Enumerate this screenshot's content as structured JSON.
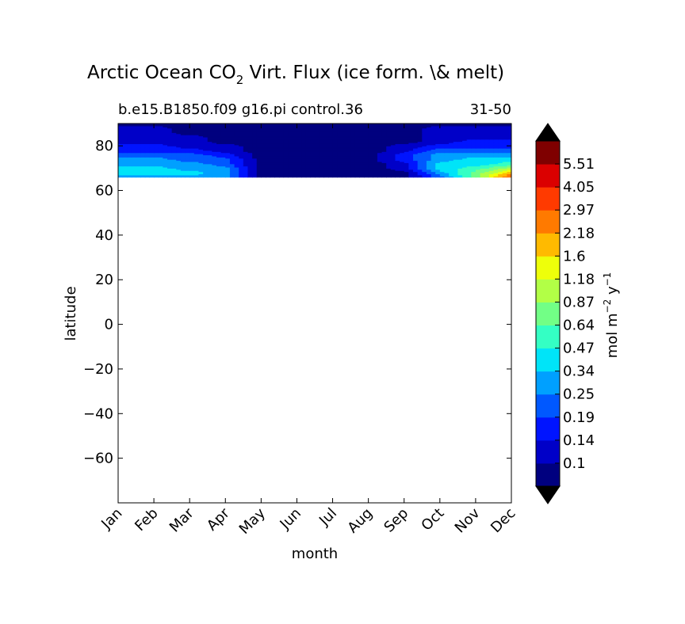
{
  "chart_data": {
    "type": "heatmap",
    "title": "Arctic Ocean CO",
    "title_subscript": "2",
    "title_rest": " Virt. Flux (ice form. \\& melt)",
    "subtitle_left": "b.e15.B1850.f09 g16.pi control.36",
    "subtitle_right": "31-50",
    "xlabel": "month",
    "ylabel": "latitude",
    "x_categories": [
      "Jan",
      "Feb",
      "Mar",
      "Apr",
      "May",
      "Jun",
      "Jul",
      "Aug",
      "Sep",
      "Oct",
      "Nov",
      "Dec"
    ],
    "xlim": [
      0,
      11
    ],
    "ylim": [
      -80,
      90
    ],
    "yticks": [
      80,
      60,
      40,
      20,
      0,
      -20,
      -40,
      -60
    ],
    "ytick_labels": [
      "80",
      "60",
      "40",
      "20",
      "0",
      "−20",
      "−40",
      "−60"
    ],
    "data_lat_range": [
      66,
      90
    ],
    "grid": false,
    "colorbar": {
      "label": "mol m",
      "label_sup1": "−2",
      "label_mid": " y",
      "label_sup2": "−1",
      "levels": [
        "0.1",
        "0.14",
        "0.19",
        "0.25",
        "0.34",
        "0.47",
        "0.64",
        "0.87",
        "1.18",
        "1.6",
        "2.18",
        "2.97",
        "4.05",
        "5.51"
      ],
      "colors": [
        "#00007f",
        "#0000c8",
        "#0014ff",
        "#0058ff",
        "#00a0ff",
        "#00e4f8",
        "#34ffc4",
        "#72ff86",
        "#b2ff46",
        "#eeff0a",
        "#ffba00",
        "#ff7a00",
        "#ff3a00",
        "#db0000",
        "#7f0000"
      ],
      "under_color": "#000000",
      "over_color": "#000000",
      "extend": "both"
    },
    "field_description_levels": {
      "lat": [
        66,
        68,
        70,
        72,
        74,
        76,
        78,
        80,
        82,
        84,
        86,
        88,
        90
      ],
      "month": [
        0,
        1,
        2,
        3,
        4,
        5,
        6,
        7,
        8,
        9,
        10,
        11
      ],
      "band_index": [
        [
          4,
          4,
          4,
          4,
          0,
          0,
          0,
          0,
          0,
          3,
          7,
          12
        ],
        [
          5,
          5,
          5,
          4,
          0,
          0,
          0,
          0,
          0,
          4,
          7,
          10
        ],
        [
          5,
          5,
          4,
          4,
          0,
          0,
          0,
          0,
          1,
          5,
          6,
          8
        ],
        [
          4,
          4,
          4,
          3,
          0,
          0,
          0,
          0,
          1,
          5,
          5,
          6
        ],
        [
          4,
          4,
          3,
          3,
          0,
          0,
          0,
          0,
          2,
          4,
          5,
          5
        ],
        [
          3,
          3,
          3,
          2,
          0,
          0,
          0,
          0,
          2,
          4,
          4,
          4
        ],
        [
          2,
          2,
          2,
          1,
          0,
          0,
          0,
          0,
          1,
          3,
          3,
          3
        ],
        [
          2,
          2,
          1,
          1,
          0,
          0,
          0,
          0,
          1,
          2,
          2,
          2
        ],
        [
          1,
          1,
          1,
          0,
          0,
          0,
          0,
          0,
          0,
          1,
          2,
          2
        ],
        [
          1,
          1,
          1,
          0,
          0,
          0,
          0,
          0,
          0,
          1,
          1,
          1
        ],
        [
          1,
          1,
          0,
          0,
          0,
          0,
          0,
          0,
          0,
          1,
          1,
          1
        ],
        [
          1,
          1,
          0,
          0,
          0,
          0,
          0,
          0,
          0,
          1,
          1,
          1
        ],
        [
          0,
          0,
          0,
          0,
          0,
          0,
          0,
          0,
          0,
          0,
          0,
          0
        ]
      ]
    }
  }
}
